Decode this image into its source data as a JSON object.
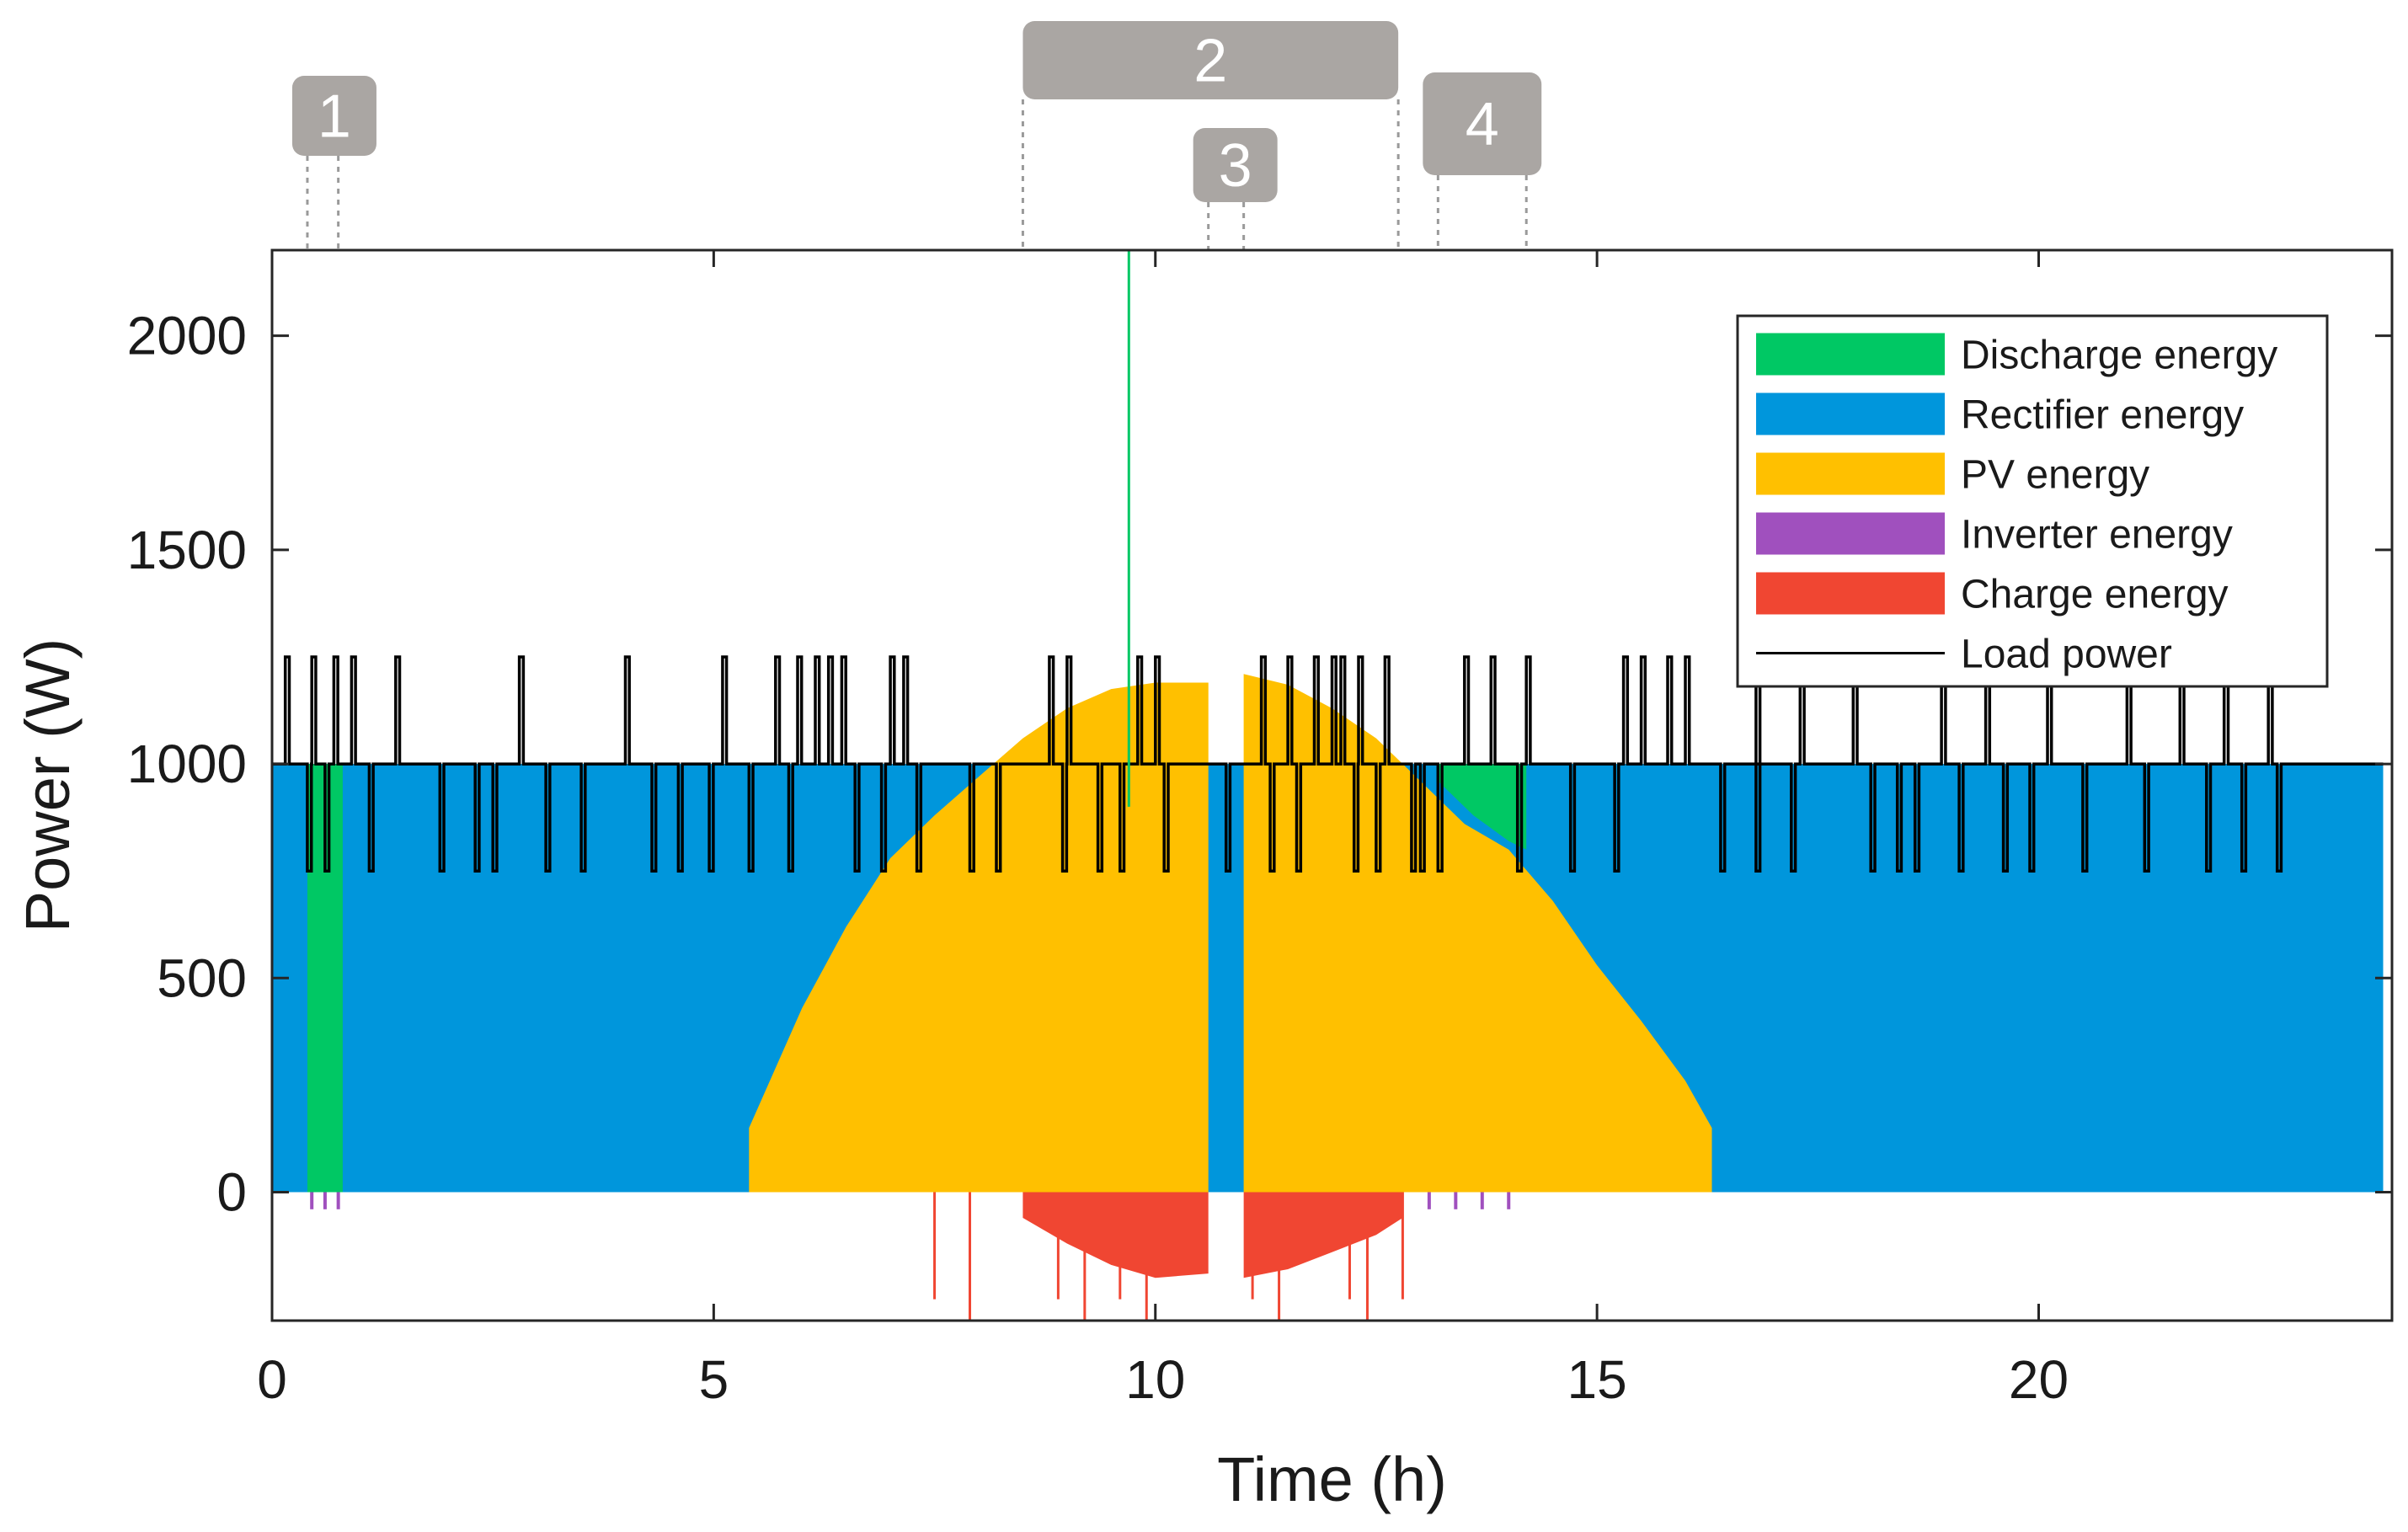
{
  "chart_data": {
    "type": "area",
    "xlabel": "Time (h)",
    "ylabel": "Power (W)",
    "xlim": [
      0,
      24
    ],
    "ylim": [
      -300,
      2200
    ],
    "x_ticks": [
      0,
      5,
      10,
      15,
      20
    ],
    "y_ticks": [
      0,
      500,
      1000,
      1500,
      2000
    ],
    "legend_position": "top-right",
    "colors": {
      "discharge": "#00c864",
      "rectifier": "#0096dc",
      "pv": "#ffc000",
      "inverter": "#a050be",
      "charge": "#f04632",
      "load": "#000000"
    },
    "legend": [
      {
        "key": "discharge",
        "label": "Discharge energy"
      },
      {
        "key": "rectifier",
        "label": "Rectifier energy"
      },
      {
        "key": "pv",
        "label": "PV energy"
      },
      {
        "key": "inverter",
        "label": "Inverter energy"
      },
      {
        "key": "charge",
        "label": "Charge energy"
      },
      {
        "key": "load",
        "label": "Load power"
      }
    ],
    "series": [
      {
        "name": "PV energy",
        "x": [
          5.4,
          6.0,
          6.5,
          7.0,
          7.5,
          8.0,
          8.5,
          9.0,
          9.5,
          10.0,
          10.6,
          10.6,
          11.0,
          11.0,
          11.5,
          12.0,
          12.5,
          13.0,
          13.5,
          14.0,
          14.5,
          15.0,
          15.5,
          16.0,
          16.3
        ],
        "values": [
          150,
          430,
          620,
          780,
          880,
          970,
          1060,
          1130,
          1175,
          1190,
          1190,
          0,
          0,
          1210,
          1185,
          1130,
          1060,
          960,
          860,
          800,
          680,
          530,
          400,
          260,
          150
        ]
      },
      {
        "name": "Rectifier energy",
        "x": [
          0,
          0.4,
          0.8,
          5.4,
          8.3,
          10.6,
          11.0,
          12.8,
          13.2,
          14.2,
          23.9
        ],
        "values": [
          1000,
          1000,
          1000,
          1000,
          1000,
          1000,
          1000,
          1000,
          900,
          1000,
          1000
        ]
      },
      {
        "name": "Discharge energy",
        "x": [
          0.4,
          0.8,
          13.2,
          13.5,
          14.0,
          14.2
        ],
        "values": [
          1000,
          1000,
          1000,
          1000,
          1000,
          1000
        ]
      },
      {
        "name": "Charge energy",
        "x": [
          8.5,
          9.0,
          9.5,
          10.0,
          10.6,
          11.0,
          11.5,
          12.0,
          12.5,
          12.8
        ],
        "values": [
          -60,
          -120,
          -170,
          -200,
          -190,
          -200,
          -180,
          -140,
          -100,
          -60
        ]
      },
      {
        "name": "Load power",
        "base": 1000,
        "spikes_high": [
          0.15,
          0.45,
          0.7,
          0.9,
          1.4,
          2.8,
          4.0,
          5.1,
          5.7,
          5.95,
          6.15,
          6.3,
          6.45,
          7.0,
          7.15,
          8.8,
          9.0,
          9.8,
          10.0,
          11.2,
          11.5,
          11.8,
          12.0,
          12.1,
          12.3,
          12.6,
          13.5,
          13.8,
          14.2,
          15.3,
          15.5,
          15.8,
          16.0,
          16.8,
          17.3,
          17.9,
          18.9,
          19.4,
          20.1,
          21.0,
          21.6,
          22.1,
          22.6
        ],
        "high": 1250,
        "spikes_low": [
          0.4,
          0.6,
          1.1,
          1.9,
          2.3,
          2.5,
          3.1,
          3.5,
          4.3,
          4.6,
          4.95,
          5.4,
          5.85,
          6.6,
          6.9,
          7.3,
          7.9,
          8.2,
          8.95,
          9.35,
          9.6,
          10.1,
          10.8,
          11.3,
          11.6,
          12.25,
          12.5,
          12.9,
          13.0,
          13.2,
          14.1,
          14.7,
          15.2,
          16.4,
          16.8,
          17.2,
          18.1,
          18.4,
          18.6,
          19.1,
          19.6,
          19.9,
          20.5,
          21.2,
          21.9,
          22.3,
          22.7
        ],
        "low": 750
      }
    ],
    "regions": [
      {
        "label": "1",
        "x_start": 0.4,
        "x_end": 0.75
      },
      {
        "label": "2",
        "x_start": 8.5,
        "x_end": 12.75
      },
      {
        "label": "3",
        "x_start": 10.6,
        "x_end": 11.0
      },
      {
        "label": "4",
        "x_start": 13.2,
        "x_end": 14.2
      }
    ],
    "annotations": [
      {
        "text": "",
        "x": 9.7,
        "y": 2200,
        "note": "discharge spike"
      }
    ]
  }
}
